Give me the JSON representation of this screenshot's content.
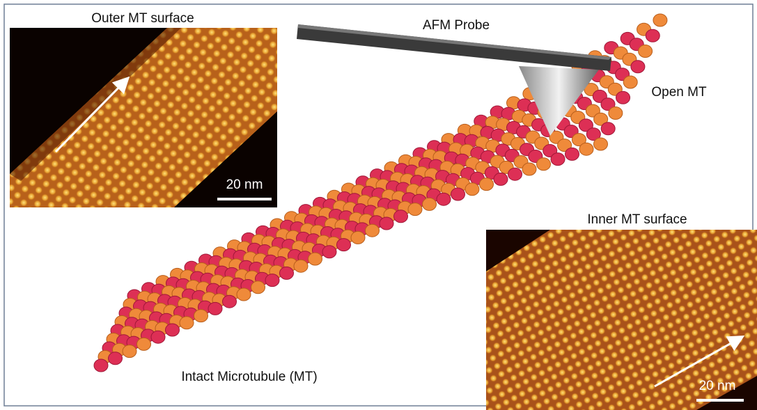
{
  "panels": [
    {
      "title": "Outer MT surface",
      "scale_bar": "20 nm"
    },
    {
      "title": "Inner MT surface",
      "scale_bar": "20 nm"
    }
  ],
  "labels": {
    "probe": "AFM Probe",
    "open": "Open MT",
    "intact": "Intact Microtubule (MT)"
  }
}
